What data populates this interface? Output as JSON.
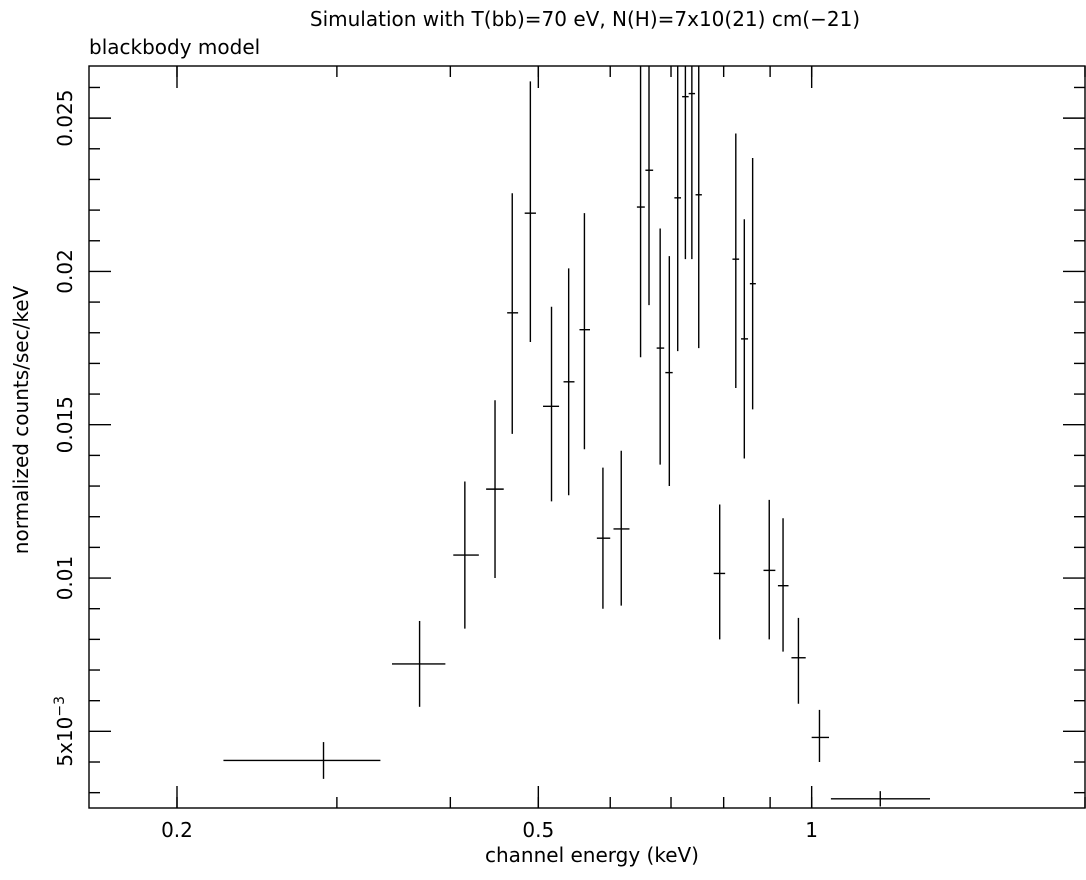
{
  "chart_data": {
    "type": "scatter",
    "title": "Simulation with T(bb)=70 eV, N(H)=7x10(21) cm(−21)",
    "subtitle": "blackbody model",
    "xlabel": "channel energy (keV)",
    "ylabel": "normalized counts/sec/keV",
    "xscale": "log",
    "xlim": [
      0.16,
      2.0
    ],
    "ylim": [
      0.0025,
      0.0267
    ],
    "grid": false,
    "x_ticks": [
      {
        "value": 0.2,
        "label": "0.2"
      },
      {
        "value": 0.5,
        "label": "0.5"
      },
      {
        "value": 1,
        "label": "1"
      }
    ],
    "y_ticks": [
      {
        "value": 0.005,
        "label": "5x10",
        "exp": "−3"
      },
      {
        "value": 0.01,
        "label": "0.01"
      },
      {
        "value": 0.015,
        "label": "0.015"
      },
      {
        "value": 0.02,
        "label": "0.02"
      },
      {
        "value": 0.025,
        "label": "0.025"
      }
    ],
    "series": [
      {
        "style": "crosses",
        "points": [
          {
            "x": 0.29,
            "xlo": 0.225,
            "xhi": 0.335,
            "y": 0.00405,
            "ylo": 0.00345,
            "yhi": 0.00465
          },
          {
            "x": 0.37,
            "xlo": 0.345,
            "xhi": 0.395,
            "y": 0.0072,
            "ylo": 0.0058,
            "yhi": 0.0086
          },
          {
            "x": 0.415,
            "xlo": 0.403,
            "xhi": 0.43,
            "y": 0.01075,
            "ylo": 0.00835,
            "yhi": 0.01315
          },
          {
            "x": 0.448,
            "xlo": 0.438,
            "xhi": 0.458,
            "y": 0.0129,
            "ylo": 0.01,
            "yhi": 0.0158
          },
          {
            "x": 0.468,
            "xlo": 0.462,
            "xhi": 0.475,
            "y": 0.01865,
            "ylo": 0.0147,
            "yhi": 0.02255
          },
          {
            "x": 0.49,
            "xlo": 0.483,
            "xhi": 0.497,
            "y": 0.0219,
            "ylo": 0.0177,
            "yhi": 0.0262
          },
          {
            "x": 0.517,
            "xlo": 0.506,
            "xhi": 0.527,
            "y": 0.0156,
            "ylo": 0.0125,
            "yhi": 0.01885
          },
          {
            "x": 0.54,
            "xlo": 0.533,
            "xhi": 0.548,
            "y": 0.0164,
            "ylo": 0.0127,
            "yhi": 0.0201
          },
          {
            "x": 0.562,
            "xlo": 0.555,
            "xhi": 0.57,
            "y": 0.0181,
            "ylo": 0.0142,
            "yhi": 0.0219
          },
          {
            "x": 0.589,
            "xlo": 0.58,
            "xhi": 0.6,
            "y": 0.0113,
            "ylo": 0.009,
            "yhi": 0.0136
          },
          {
            "x": 0.617,
            "xlo": 0.605,
            "xhi": 0.63,
            "y": 0.0116,
            "ylo": 0.0091,
            "yhi": 0.01415
          },
          {
            "x": 0.648,
            "xlo": 0.642,
            "xhi": 0.655,
            "y": 0.0221,
            "ylo": 0.0172,
            "yhi": 0.0267
          },
          {
            "x": 0.662,
            "xlo": 0.656,
            "xhi": 0.669,
            "y": 0.0233,
            "ylo": 0.0189,
            "yhi": 0.0267
          },
          {
            "x": 0.681,
            "xlo": 0.675,
            "xhi": 0.688,
            "y": 0.0175,
            "ylo": 0.0137,
            "yhi": 0.0214
          },
          {
            "x": 0.697,
            "xlo": 0.69,
            "xhi": 0.703,
            "y": 0.0167,
            "ylo": 0.013,
            "yhi": 0.0205
          },
          {
            "x": 0.712,
            "xlo": 0.706,
            "xhi": 0.718,
            "y": 0.0224,
            "ylo": 0.0174,
            "yhi": 0.0267
          },
          {
            "x": 0.726,
            "xlo": 0.72,
            "xhi": 0.732,
            "y": 0.0257,
            "ylo": 0.0204,
            "yhi": 0.0267
          },
          {
            "x": 0.738,
            "xlo": 0.732,
            "xhi": 0.744,
            "y": 0.0258,
            "ylo": 0.0204,
            "yhi": 0.0267
          },
          {
            "x": 0.751,
            "xlo": 0.745,
            "xhi": 0.757,
            "y": 0.0225,
            "ylo": 0.0175,
            "yhi": 0.0267
          },
          {
            "x": 0.792,
            "xlo": 0.78,
            "xhi": 0.803,
            "y": 0.01015,
            "ylo": 0.008,
            "yhi": 0.0124
          },
          {
            "x": 0.825,
            "xlo": 0.818,
            "xhi": 0.832,
            "y": 0.0204,
            "ylo": 0.0162,
            "yhi": 0.0245
          },
          {
            "x": 0.843,
            "xlo": 0.836,
            "xhi": 0.851,
            "y": 0.0178,
            "ylo": 0.0139,
            "yhi": 0.0217
          },
          {
            "x": 0.861,
            "xlo": 0.855,
            "xhi": 0.868,
            "y": 0.0196,
            "ylo": 0.0155,
            "yhi": 0.0237
          },
          {
            "x": 0.898,
            "xlo": 0.885,
            "xhi": 0.912,
            "y": 0.01025,
            "ylo": 0.008,
            "yhi": 0.01255
          },
          {
            "x": 0.93,
            "xlo": 0.918,
            "xhi": 0.943,
            "y": 0.00975,
            "ylo": 0.0076,
            "yhi": 0.01195
          },
          {
            "x": 0.967,
            "xlo": 0.95,
            "xhi": 0.985,
            "y": 0.0074,
            "ylo": 0.0059,
            "yhi": 0.0087
          },
          {
            "x": 1.02,
            "xlo": 1.0,
            "xhi": 1.045,
            "y": 0.0048,
            "ylo": 0.004,
            "yhi": 0.0057
          },
          {
            "x": 1.19,
            "xlo": 1.05,
            "xhi": 1.35,
            "y": 0.0028,
            "ylo": 0.00255,
            "yhi": 0.00305
          }
        ]
      }
    ]
  }
}
